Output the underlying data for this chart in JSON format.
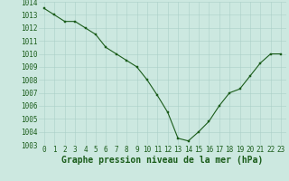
{
  "hours": [
    0,
    1,
    2,
    3,
    4,
    5,
    6,
    7,
    8,
    9,
    10,
    11,
    12,
    13,
    14,
    15,
    16,
    17,
    18,
    19,
    20,
    21,
    22,
    23
  ],
  "pressure": [
    1013.5,
    1013.0,
    1012.5,
    1012.5,
    1012.0,
    1011.5,
    1010.5,
    1010.0,
    1009.5,
    1009.0,
    1008.0,
    1006.8,
    1005.5,
    1003.5,
    1003.3,
    1004.0,
    1004.8,
    1006.0,
    1007.0,
    1007.3,
    1008.3,
    1009.3,
    1010.0,
    1010.0
  ],
  "ylim_min": 1003,
  "ylim_max": 1014,
  "yticks": [
    1003,
    1004,
    1005,
    1006,
    1007,
    1008,
    1009,
    1010,
    1011,
    1012,
    1013,
    1014
  ],
  "xticks": [
    0,
    1,
    2,
    3,
    4,
    5,
    6,
    7,
    8,
    9,
    10,
    11,
    12,
    13,
    14,
    15,
    16,
    17,
    18,
    19,
    20,
    21,
    22,
    23
  ],
  "line_color": "#1a5c1a",
  "marker_color": "#1a5c1a",
  "bg_color": "#cce8e0",
  "grid_color": "#aacfc8",
  "xlabel": "Graphe pression niveau de la mer (hPa)",
  "xlabel_fontsize": 7.0,
  "tick_fontsize": 5.5
}
